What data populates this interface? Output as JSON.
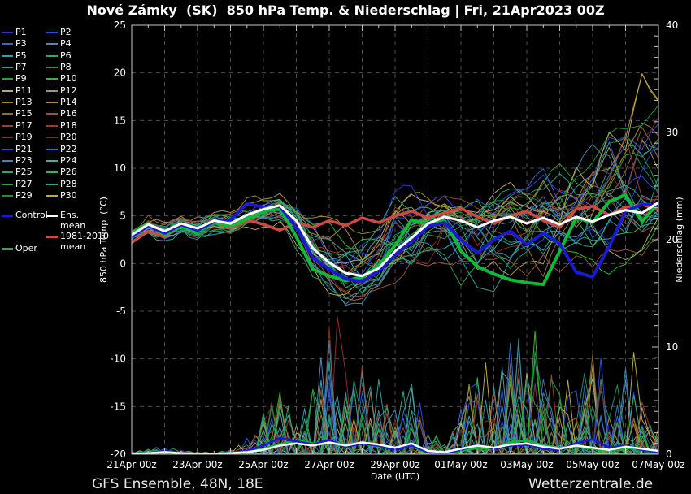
{
  "title": "Nové Zámky  (SK)  850 hPa Temp. & Niederschlag | Fri, 21Apr2023 00Z",
  "footer": {
    "left": "GFS Ensemble, 48N, 18E",
    "right": "Wetterzentrale.de"
  },
  "colors": {
    "background": "#000000",
    "grid": "#4d4d4d",
    "axis": "#c8c8c8",
    "text": "#ffffff",
    "control": "#1a1ad0",
    "ens_mean": "#ffffff",
    "clim_mean": "#cc4a44",
    "oper": "#10b93a"
  },
  "legend": {
    "members": [
      {
        "label": "P1",
        "color": "#2438cc"
      },
      {
        "label": "P2",
        "color": "#2a50e0"
      },
      {
        "label": "P3",
        "color": "#3a66c8"
      },
      {
        "label": "P4",
        "color": "#4e86b8"
      },
      {
        "label": "P5",
        "color": "#2ba4b0"
      },
      {
        "label": "P6",
        "color": "#2aa184"
      },
      {
        "label": "P7",
        "color": "#2f9e9b"
      },
      {
        "label": "P8",
        "color": "#1e8f62"
      },
      {
        "label": "P9",
        "color": "#23a043"
      },
      {
        "label": "P10",
        "color": "#2db82d"
      },
      {
        "label": "P11",
        "color": "#b4a878"
      },
      {
        "label": "P12",
        "color": "#a89549"
      },
      {
        "label": "P13",
        "color": "#a28a2e"
      },
      {
        "label": "P14",
        "color": "#b08b3c"
      },
      {
        "label": "P15",
        "color": "#8f6a3f"
      },
      {
        "label": "P16",
        "color": "#96543a"
      },
      {
        "label": "P17",
        "color": "#8c4632"
      },
      {
        "label": "P18",
        "color": "#9c3d28"
      },
      {
        "label": "P19",
        "color": "#8d2f22"
      },
      {
        "label": "P20",
        "color": "#7e2a1e"
      },
      {
        "label": "P21",
        "color": "#2d4fd0"
      },
      {
        "label": "P22",
        "color": "#3a6ec2"
      },
      {
        "label": "P23",
        "color": "#3f86b0"
      },
      {
        "label": "P24",
        "color": "#4aa3a6"
      },
      {
        "label": "P25",
        "color": "#2aa478"
      },
      {
        "label": "P26",
        "color": "#3fae56"
      },
      {
        "label": "P27",
        "color": "#2f9f42"
      },
      {
        "label": "P28",
        "color": "#28a88a"
      },
      {
        "label": "P29",
        "color": "#1f9038"
      },
      {
        "label": "P30",
        "color": "#b8ab42"
      }
    ],
    "control_label": "Control",
    "ens_mean_label": "Ens. mean",
    "clim_label": "1981-2010 mean",
    "oper_label": "Oper"
  },
  "chart_data": {
    "type": "line",
    "title": "Nové Zámky (SK) 850 hPa Temp. & Niederschlag | Fri, 21Apr2023 00Z",
    "xlabel": "Date (UTC)",
    "ylabel_left": "850 hPa Temp. (°C)",
    "ylabel_right": "Niederschlag (mm)",
    "ylim_left": [
      -20,
      25
    ],
    "ylim_right": [
      0,
      40
    ],
    "grid": true,
    "legend_position": "left",
    "x_tick_labels": [
      "21Apr 00z",
      "23Apr 00z",
      "25Apr 00z",
      "27Apr 00z",
      "29Apr 00z",
      "01May 00z",
      "03May 00z",
      "05May 00z",
      "07May 00z"
    ],
    "y_left_ticks": [
      25,
      20,
      15,
      10,
      5,
      0,
      -5,
      -10,
      -15,
      -20
    ],
    "y_right_ticks": [
      40,
      30,
      20,
      10,
      0
    ],
    "time_steps": [
      "21Apr00",
      "21Apr12",
      "22Apr00",
      "22Apr12",
      "23Apr00",
      "23Apr12",
      "24Apr00",
      "24Apr12",
      "25Apr00",
      "25Apr12",
      "26Apr00",
      "26Apr12",
      "27Apr00",
      "27Apr12",
      "28Apr00",
      "28Apr12",
      "29Apr00",
      "29Apr12",
      "30Apr00",
      "30Apr12",
      "01May00",
      "01May12",
      "02May00",
      "02May12",
      "03May00",
      "03May12",
      "04May00",
      "04May12",
      "05May00",
      "05May12",
      "06May00",
      "06May12",
      "07May00"
    ],
    "temperature_c": {
      "clim_mean_1981_2010": [
        2.2,
        3.4,
        2.8,
        4.0,
        3.3,
        4.4,
        3.7,
        4.6,
        4.1,
        3.5,
        4.3,
        3.8,
        4.5,
        4.0,
        4.8,
        4.3,
        5.0,
        5.5,
        4.8,
        5.3,
        5.8,
        4.9,
        4.2,
        5.0,
        5.5,
        4.5,
        3.8,
        5.7,
        6.0,
        5.1,
        5.9,
        6.2,
        5.6
      ],
      "ens_mean": [
        3.0,
        4.1,
        3.4,
        4.2,
        3.7,
        4.5,
        4.2,
        5.1,
        5.7,
        6.1,
        4.5,
        1.6,
        0.1,
        -1.0,
        -1.3,
        -0.5,
        1.3,
        2.7,
        4.2,
        4.9,
        4.5,
        3.8,
        4.5,
        4.9,
        4.2,
        4.8,
        4.1,
        4.9,
        4.4,
        5.1,
        5.6,
        5.3,
        6.4
      ],
      "control": [
        2.8,
        4.0,
        3.2,
        4.1,
        3.5,
        4.4,
        4.6,
        6.3,
        5.9,
        6.0,
        3.8,
        0.6,
        -0.6,
        -1.6,
        -1.9,
        -0.8,
        0.9,
        2.3,
        3.9,
        4.3,
        2.5,
        1.1,
        2.5,
        3.4,
        2.0,
        3.2,
        2.1,
        -0.9,
        -1.4,
        1.8,
        5.5,
        6.2,
        6.1
      ],
      "oper": [
        3.2,
        4.2,
        3.0,
        3.9,
        3.3,
        4.3,
        3.9,
        4.7,
        5.5,
        5.8,
        2.8,
        -0.6,
        -1.3,
        -1.8,
        -1.4,
        -0.2,
        1.9,
        4.6,
        4.1,
        4.5,
        1.3,
        -0.3,
        -1.1,
        -1.7,
        -2.0,
        -2.2,
        1.3,
        4.8,
        4.3,
        6.5,
        7.2,
        4.4,
        6.4
      ],
      "ens_min": [
        2.2,
        3.0,
        2.4,
        3.0,
        2.6,
        3.2,
        3.0,
        3.6,
        3.8,
        3.4,
        0.8,
        -2.2,
        -3.6,
        -4.6,
        -4.2,
        -3.6,
        -3.0,
        -2.6,
        -2.0,
        -1.6,
        -3.0,
        -4.0,
        -3.6,
        -3.0,
        -4.2,
        -4.6,
        -3.2,
        -2.6,
        -2.2,
        -1.2,
        -0.2,
        0.4,
        1.0
      ],
      "ens_max": [
        3.8,
        5.0,
        4.4,
        5.2,
        5.0,
        5.6,
        6.2,
        7.2,
        7.0,
        7.5,
        6.5,
        6.0,
        5.5,
        5.0,
        5.5,
        6.0,
        9.0,
        8.2,
        7.0,
        7.5,
        7.0,
        7.6,
        8.0,
        8.6,
        9.0,
        10.0,
        11.0,
        12.5,
        13.0,
        15.5,
        17.5,
        20.5,
        17.5
      ]
    },
    "precipitation_mm": {
      "ens_mean": [
        0.0,
        0.1,
        0.2,
        0.1,
        0.0,
        0.0,
        0.1,
        0.2,
        0.4,
        0.8,
        1.0,
        0.8,
        1.1,
        0.8,
        1.1,
        0.9,
        0.6,
        1.0,
        0.3,
        0.2,
        0.5,
        0.8,
        0.6,
        0.9,
        1.0,
        0.7,
        0.5,
        0.8,
        0.6,
        0.4,
        0.7,
        0.5,
        0.3
      ],
      "control": [
        0.0,
        0.1,
        0.3,
        0.1,
        0.0,
        0.0,
        0.1,
        0.3,
        0.8,
        1.5,
        1.2,
        0.9,
        1.3,
        0.7,
        1.0,
        0.8,
        0.4,
        0.8,
        0.2,
        0.1,
        0.4,
        0.9,
        0.5,
        0.8,
        0.9,
        0.5,
        0.4,
        1.0,
        1.4,
        0.6,
        0.8,
        0.4,
        0.2
      ],
      "oper": [
        0.0,
        0.2,
        0.3,
        0.1,
        0.0,
        0.0,
        0.0,
        0.2,
        0.5,
        0.9,
        1.3,
        1.0,
        1.2,
        0.9,
        1.0,
        0.7,
        0.5,
        0.7,
        0.2,
        0.1,
        0.3,
        0.6,
        0.5,
        1.1,
        1.3,
        0.8,
        0.6,
        0.7,
        0.5,
        0.3,
        0.6,
        0.4,
        0.2
      ],
      "ens_max": [
        0.3,
        0.5,
        0.8,
        0.4,
        0.2,
        0.2,
        0.4,
        1.5,
        4.0,
        6.0,
        5.0,
        7.0,
        13.0,
        8.0,
        8.5,
        7.0,
        5.0,
        8.0,
        2.5,
        1.5,
        4.5,
        9.0,
        6.5,
        11.0,
        12.0,
        7.5,
        8.0,
        6.0,
        9.5,
        4.5,
        10.0,
        5.0,
        2.5
      ]
    },
    "ensemble_member_count": 30
  }
}
